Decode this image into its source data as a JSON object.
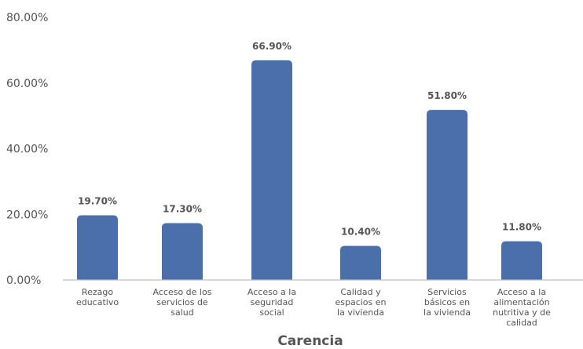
{
  "chart_data": {
    "type": "bar",
    "categories": [
      [
        "Rezago",
        "educativo"
      ],
      [
        "Acceso de los",
        "servicios de",
        "salud"
      ],
      [
        "Acceso a la",
        "seguridad",
        "social"
      ],
      [
        "Calidad y",
        "espacios en",
        "la vivienda"
      ],
      [
        "Servicios",
        "básicos en",
        "la vivienda"
      ],
      [
        "Acceso a la",
        "alimentación",
        "nutritiva y de",
        "calidad"
      ]
    ],
    "values": [
      19.7,
      17.3,
      66.9,
      10.4,
      51.8,
      11.8
    ],
    "value_labels": [
      "19.70%",
      "17.30%",
      "66.90%",
      "10.40%",
      "51.80%",
      "11.80%"
    ],
    "y_ticks": [
      "0.00%",
      "20.00%",
      "40.00%",
      "60.00%",
      "80.00%"
    ],
    "xlabel": "Carencia",
    "bar_color": "#4a6fab",
    "grid": false
  }
}
